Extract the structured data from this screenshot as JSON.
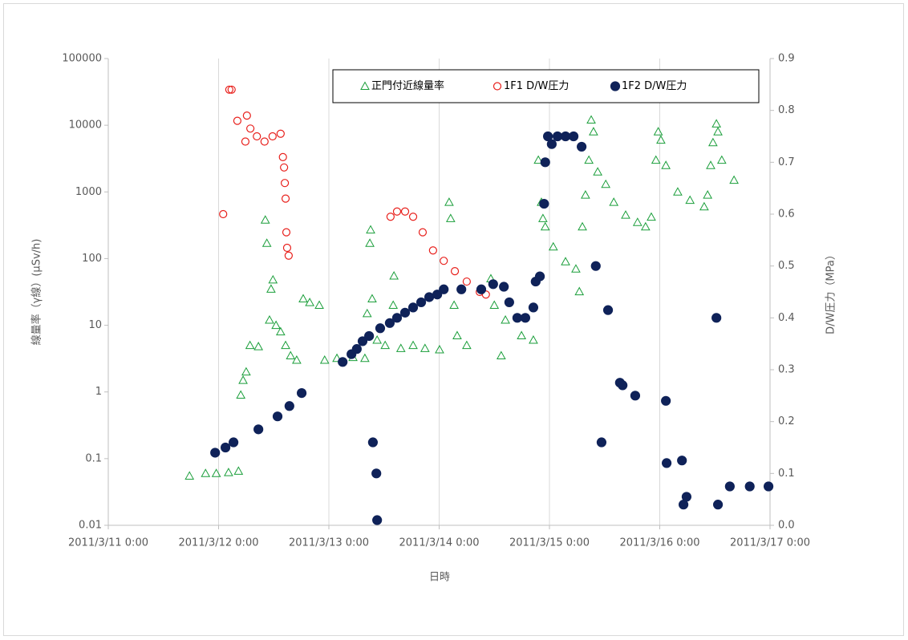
{
  "chart_data": {
    "type": "scatter",
    "x_label": "日時",
    "y_label": "線量率（γ線）(μSv/h)",
    "y2_label": "D/W圧力（MPa）",
    "xlim": [
      "2011/3/11 0:00",
      "2011/3/17 0:00"
    ],
    "xticks": [
      "2011/3/11 0:00",
      "2011/3/12 0:00",
      "2011/3/13 0:00",
      "2011/3/14 0:00",
      "2011/3/15 0:00",
      "2011/3/16 0:00",
      "2011/3/17 0:00"
    ],
    "ylim": [
      0.01,
      100000
    ],
    "yticks": [
      0.01,
      0.1,
      1,
      10,
      100,
      1000,
      10000,
      100000
    ],
    "ylog": true,
    "y2lim": [
      0,
      0.9
    ],
    "y2ticks": [
      {
        "value": 0,
        "label": "0.0"
      },
      0.1,
      0.2,
      0.3,
      0.4,
      0.5,
      0.6,
      0.7,
      0.8,
      0.9
    ],
    "grid": "x",
    "legend": "top-right",
    "series": [
      {
        "name": "正門付近線量率",
        "color": "#1a9e3a",
        "marker": "triangle-open",
        "x": [
          "2011/3/11 17:40",
          "2011/3/11 21:10",
          "2011/3/11 23:30",
          "2011/3/12 2:10",
          "2011/3/12 4:20",
          "2011/3/12 4:50",
          "2011/3/12 5:20",
          "2011/3/12 6:00",
          "2011/3/12 6:50",
          "2011/3/12 8:40",
          "2011/3/12 10:10",
          "2011/3/12 10:30",
          "2011/3/12 11:05",
          "2011/3/12 11:25",
          "2011/3/12 11:50",
          "2011/3/12 12:30",
          "2011/3/12 13:30",
          "2011/3/12 14:35",
          "2011/3/12 15:40",
          "2011/3/12 17:00",
          "2011/3/12 18:25",
          "2011/3/12 19:50",
          "2011/3/12 21:55",
          "2011/3/12 23:05",
          "2011/3/13 1:45",
          "2011/3/13 5:15",
          "2011/3/13 7:50",
          "2011/3/13 8:20",
          "2011/3/13 8:55",
          "2011/3/13 9:05",
          "2011/3/13 9:25",
          "2011/3/13 10:30",
          "2011/3/13 12:15",
          "2011/3/13 14:00",
          "2011/3/13 14:10",
          "2011/3/13 15:40",
          "2011/3/13 18:20",
          "2011/3/13 20:55",
          "2011/3/14 0:05",
          "2011/3/14 2:10",
          "2011/3/14 2:30",
          "2011/3/14 3:15",
          "2011/3/14 3:55",
          "2011/3/14 6:00",
          "2011/3/14 11:15",
          "2011/3/14 12:00",
          "2011/3/14 13:30",
          "2011/3/14 14:25",
          "2011/3/14 17:55",
          "2011/3/14 20:30",
          "2011/3/14 21:35",
          "2011/3/14 22:15",
          "2011/3/14 22:35",
          "2011/3/14 23:05",
          "2011/3/15 0:50",
          "2011/3/15 3:30",
          "2011/3/15 5:45",
          "2011/3/15 6:30",
          "2011/3/15 7:10",
          "2011/3/15 7:50",
          "2011/3/15 8:35",
          "2011/3/15 9:05",
          "2011/3/15 9:35",
          "2011/3/15 10:30",
          "2011/3/15 12:15",
          "2011/3/15 14:00",
          "2011/3/15 16:35",
          "2011/3/15 19:10",
          "2011/3/15 20:55",
          "2011/3/15 22:10",
          "2011/3/15 23:10",
          "2011/3/15 23:40",
          "2011/3/16 0:15",
          "2011/3/16 1:20",
          "2011/3/16 3:55",
          "2011/3/16 6:35",
          "2011/3/16 9:40",
          "2011/3/16 10:25",
          "2011/3/16 11:05",
          "2011/3/16 11:35",
          "2011/3/16 12:20",
          "2011/3/16 12:40",
          "2011/3/16 13:30",
          "2011/3/16 16:10"
        ],
        "values": [
          0.055,
          0.06,
          0.06,
          0.062,
          0.065,
          0.9,
          1.5,
          2,
          5,
          4.8,
          380,
          170,
          12,
          35,
          48,
          10,
          8,
          5,
          3.5,
          3,
          25,
          22,
          20,
          3,
          3.2,
          3.3,
          3.2,
          15,
          170,
          270,
          25,
          6,
          5,
          20,
          55,
          4.5,
          5,
          4.5,
          4.3,
          700,
          400,
          20,
          7,
          5,
          50,
          20,
          3.5,
          12,
          7,
          6,
          3000,
          700,
          400,
          300,
          150,
          90,
          70,
          32,
          300,
          900,
          3000,
          12000,
          8000,
          2000,
          1300,
          700,
          450,
          350,
          300,
          420,
          3000,
          8000,
          6000,
          2500,
          1000,
          750,
          600,
          900,
          2500,
          5500,
          10500,
          8000,
          3000,
          1500
        ]
      },
      {
        "name": "1F1 D/W圧力",
        "color": "#e8201c",
        "marker": "circle-open",
        "axis": "y2",
        "x": [
          "2011/3/12 1:00",
          "2011/3/12 2:20",
          "2011/3/12 2:50",
          "2011/3/12 4:05",
          "2011/3/12 5:50",
          "2011/3/12 6:10",
          "2011/3/12 6:55",
          "2011/3/12 8:20",
          "2011/3/12 10:00",
          "2011/3/12 11:45",
          "2011/3/12 13:30",
          "2011/3/12 14:00",
          "2011/3/12 14:15",
          "2011/3/12 14:25",
          "2011/3/12 14:35",
          "2011/3/12 14:45",
          "2011/3/12 14:55",
          "2011/3/12 15:15",
          "2011/3/13 13:25",
          "2011/3/13 14:50",
          "2011/3/13 16:35",
          "2011/3/13 18:20",
          "2011/3/13 20:25",
          "2011/3/13 22:40",
          "2011/3/14 1:00",
          "2011/3/14 3:25",
          "2011/3/14 6:00",
          "2011/3/14 8:50",
          "2011/3/14 10:10"
        ],
        "values": [
          0.6,
          0.84,
          0.84,
          0.78,
          0.74,
          0.79,
          0.765,
          0.75,
          0.74,
          0.75,
          0.755,
          0.71,
          0.69,
          0.66,
          0.63,
          0.565,
          0.535,
          0.52,
          0.595,
          0.605,
          0.605,
          0.595,
          0.565,
          0.53,
          0.51,
          0.49,
          0.47,
          0.45,
          0.445
        ]
      },
      {
        "name": "1F2 D/W圧力",
        "color": "#0f2259",
        "marker": "circle",
        "axis": "y2",
        "x": [
          "2011/3/11 23:15",
          "2011/3/12 1:30",
          "2011/3/12 3:15",
          "2011/3/12 8:40",
          "2011/3/12 12:50",
          "2011/3/12 15:25",
          "2011/3/12 18:05",
          "2011/3/13 3:00",
          "2011/3/13 4:55",
          "2011/3/13 6:05",
          "2011/3/13 7:20",
          "2011/3/13 8:45",
          "2011/3/13 9:35",
          "2011/3/13 10:20",
          "2011/3/13 10:30",
          "2011/3/13 11:10",
          "2011/3/13 13:15",
          "2011/3/13 14:50",
          "2011/3/13 16:35",
          "2011/3/13 18:20",
          "2011/3/13 20:05",
          "2011/3/13 21:50",
          "2011/3/13 23:35",
          "2011/3/14 1:00",
          "2011/3/14 4:50",
          "2011/3/14 9:10",
          "2011/3/14 11:45",
          "2011/3/14 14:05",
          "2011/3/14 15:15",
          "2011/3/14 17:00",
          "2011/3/14 18:45",
          "2011/3/14 20:30",
          "2011/3/14 21:00",
          "2011/3/14 21:55",
          "2011/3/14 22:50",
          "2011/3/14 23:05",
          "2011/3/14 23:40",
          "2011/3/15 0:30",
          "2011/3/15 1:45",
          "2011/3/15 3:30",
          "2011/3/15 5:15",
          "2011/3/15 7:00",
          "2011/3/15 10:05",
          "2011/3/15 11:20",
          "2011/3/15 12:45",
          "2011/3/15 15:20",
          "2011/3/15 15:55",
          "2011/3/15 18:40",
          "2011/3/16 1:20",
          "2011/3/16 1:30",
          "2011/3/16 4:50",
          "2011/3/16 5:10",
          "2011/3/16 5:50",
          "2011/3/16 12:20",
          "2011/3/16 12:40",
          "2011/3/16 15:15",
          "2011/3/16 19:35",
          "2011/3/16 23:40"
        ],
        "values": [
          0.14,
          0.15,
          0.16,
          0.185,
          0.21,
          0.23,
          0.255,
          0.315,
          0.33,
          0.34,
          0.355,
          0.365,
          0.16,
          0.1,
          0.01,
          0.38,
          0.39,
          0.4,
          0.41,
          0.42,
          0.43,
          0.44,
          0.445,
          0.455,
          0.455,
          0.455,
          0.465,
          0.46,
          0.43,
          0.4,
          0.4,
          0.42,
          0.47,
          0.48,
          0.62,
          0.7,
          0.75,
          0.735,
          0.75,
          0.75,
          0.75,
          0.73,
          0.5,
          0.16,
          0.415,
          0.275,
          0.27,
          0.25,
          0.24,
          0.12,
          0.125,
          0.04,
          0.055,
          0.4,
          0.04,
          0.075,
          0.075,
          0.075
        ]
      }
    ]
  }
}
